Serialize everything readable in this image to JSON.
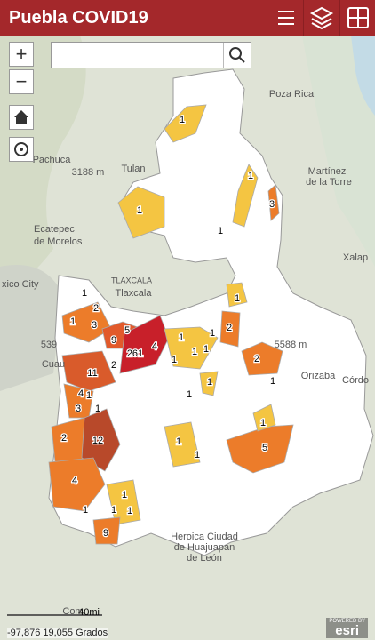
{
  "header": {
    "title": "Puebla COVID19"
  },
  "places": [
    "Poza Rica",
    "Tulan",
    "Pachuca",
    "3188 m",
    "Martínez",
    "de la Torre",
    "Ecatepec",
    "de Morelos",
    "xico City",
    "TLAXCALA",
    "Tlaxcala",
    "Xalap",
    "5588 m",
    "Orizaba",
    "Córdo",
    "Cuau",
    "539",
    "Heroica Ciudad",
    "de Huajuapan",
    "de León",
    "Com"
  ],
  "cases": [
    1,
    1,
    1,
    1,
    3,
    1,
    2,
    1,
    3,
    9,
    5,
    261,
    4,
    2,
    1,
    1,
    1,
    1,
    1,
    11,
    4,
    3,
    1,
    1,
    2,
    1,
    2,
    1,
    1,
    1,
    1,
    5,
    2,
    12,
    1,
    1,
    4,
    1,
    1,
    1,
    1,
    9
  ],
  "scale_label": "40mi",
  "coordinates": "-97,876 19,055 Grados",
  "attribution": {
    "top": "POWERED BY",
    "brand": "esri"
  }
}
